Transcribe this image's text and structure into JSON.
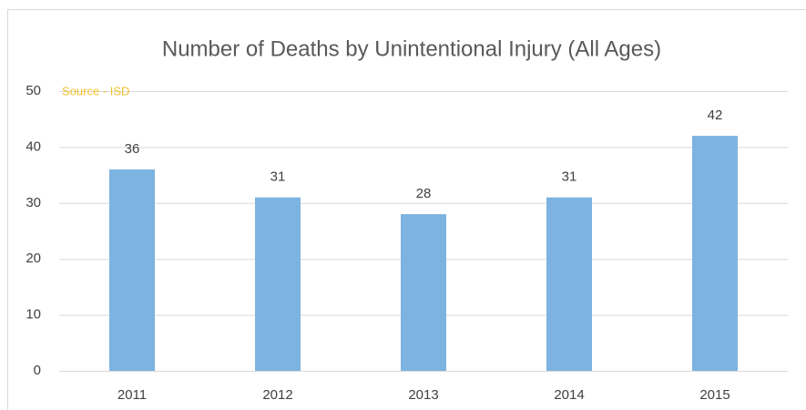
{
  "chart_data": {
    "type": "bar",
    "title": "Number of Deaths by Unintentional Injury (All Ages)",
    "annotation": "Source - ISD",
    "categories": [
      "2011",
      "2012",
      "2013",
      "2014",
      "2015"
    ],
    "values": [
      36,
      31,
      28,
      31,
      42
    ],
    "color": "#7cb3e0",
    "ylim": [
      0,
      50
    ],
    "yticks": [
      0,
      10,
      20,
      30,
      40,
      50
    ],
    "grid": true
  }
}
